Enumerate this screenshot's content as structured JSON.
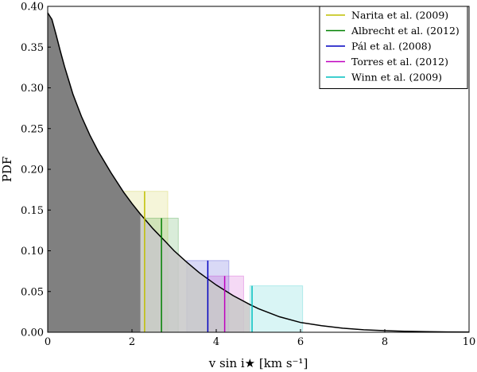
{
  "chart_data": {
    "type": "area",
    "xlabel": "v sin i★ [km s⁻¹]",
    "ylabel": "PDF",
    "xlim": [
      0,
      10
    ],
    "ylim": [
      0,
      0.4
    ],
    "x_ticks": [
      "0",
      "2",
      "4",
      "6",
      "8",
      "10"
    ],
    "y_ticks": [
      "0.00",
      "0.05",
      "0.10",
      "0.15",
      "0.20",
      "0.25",
      "0.30",
      "0.35",
      "0.40"
    ],
    "grid": false,
    "legend_position": "top-right",
    "pdf_curve": {
      "x": [
        0,
        0.1,
        0.2,
        0.3,
        0.4,
        0.5,
        0.6,
        0.8,
        1.0,
        1.2,
        1.5,
        1.8,
        2.0,
        2.2,
        2.5,
        2.8,
        3.0,
        3.3,
        3.6,
        4.0,
        4.4,
        4.8,
        5.0,
        5.5,
        6.0,
        6.5,
        7.0,
        7.5,
        8.0,
        8.5,
        9.0,
        9.5,
        10.0
      ],
      "y": [
        0.392,
        0.384,
        0.365,
        0.345,
        0.326,
        0.309,
        0.292,
        0.265,
        0.242,
        0.222,
        0.196,
        0.172,
        0.158,
        0.145,
        0.127,
        0.111,
        0.1,
        0.086,
        0.073,
        0.058,
        0.045,
        0.034,
        0.029,
        0.019,
        0.012,
        0.008,
        0.005,
        0.003,
        0.002,
        0.0012,
        0.0007,
        0.0004,
        0.0002
      ]
    },
    "dark_fill_limit": 2.2,
    "light_fill_limit": 4.8,
    "series": [
      {
        "name": "Narita et al. (2009)",
        "color": "#bfbf00",
        "value": 2.3,
        "height": 0.173,
        "band": [
          1.8,
          2.85
        ]
      },
      {
        "name": "Albrecht et al. (2012)",
        "color": "#008000",
        "value": 2.7,
        "height": 0.14,
        "band": [
          2.3,
          3.1
        ]
      },
      {
        "name": "Pál et al. (2008)",
        "color": "#0000c0",
        "value": 3.8,
        "height": 0.088,
        "band": [
          3.3,
          4.3
        ]
      },
      {
        "name": "Torres et al. (2012)",
        "color": "#bf00bf",
        "value": 4.2,
        "height": 0.069,
        "band": [
          3.8,
          4.65
        ]
      },
      {
        "name": "Winn et al. (2009)",
        "color": "#00bfbf",
        "value": 4.85,
        "height": 0.057,
        "band": [
          4.8,
          6.05
        ]
      }
    ]
  }
}
